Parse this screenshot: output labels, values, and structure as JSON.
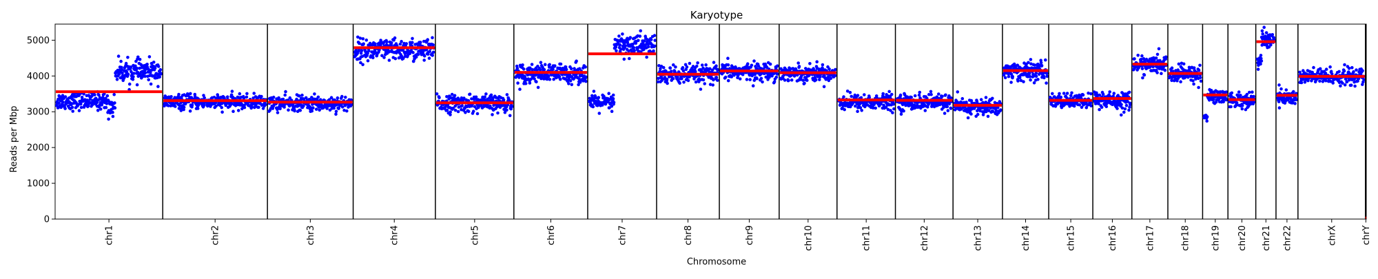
{
  "chart_data": {
    "type": "scatter",
    "title": "Karyotype",
    "xlabel": "Chromosome",
    "ylabel": "Reads per Mbp",
    "ylim": [
      0,
      5450
    ],
    "yticks": [
      0,
      1000,
      2000,
      3000,
      4000,
      5000
    ],
    "grid": false,
    "legend": "none",
    "colors": {
      "points": "#0000ff",
      "median": "#ff0000",
      "separator": "#000000"
    },
    "chromosomes": [
      {
        "name": "chr1",
        "length": 248.96,
        "median": 3560,
        "segments": [
          {
            "frac": 0.48,
            "mean": 3300,
            "spread": 170
          },
          {
            "frac": 0.08,
            "mean": 3150,
            "spread": 220
          },
          {
            "frac": 0.44,
            "mean": 4130,
            "spread": 210
          }
        ]
      },
      {
        "name": "chr2",
        "length": 242.19,
        "median": 3310,
        "segments": [
          {
            "frac": 1.0,
            "mean": 3270,
            "spread": 140
          }
        ]
      },
      {
        "name": "chr3",
        "length": 198.3,
        "median": 3270,
        "segments": [
          {
            "frac": 1.0,
            "mean": 3230,
            "spread": 150
          }
        ]
      },
      {
        "name": "chr4",
        "length": 190.21,
        "median": 4790,
        "segments": [
          {
            "frac": 1.0,
            "mean": 4720,
            "spread": 220
          }
        ]
      },
      {
        "name": "chr5",
        "length": 181.54,
        "median": 3250,
        "segments": [
          {
            "frac": 1.0,
            "mean": 3230,
            "spread": 170
          }
        ]
      },
      {
        "name": "chr6",
        "length": 170.81,
        "median": 4100,
        "segments": [
          {
            "frac": 1.0,
            "mean": 4070,
            "spread": 190
          }
        ]
      },
      {
        "name": "chr7",
        "length": 159.35,
        "median": 4620,
        "segments": [
          {
            "frac": 0.38,
            "mean": 3250,
            "spread": 170
          },
          {
            "frac": 0.62,
            "mean": 4860,
            "spread": 230
          }
        ]
      },
      {
        "name": "chr8",
        "length": 145.14,
        "median": 4050,
        "segments": [
          {
            "frac": 1.0,
            "mean": 4030,
            "spread": 190
          }
        ]
      },
      {
        "name": "chr9",
        "length": 138.39,
        "median": 4140,
        "segments": [
          {
            "frac": 1.0,
            "mean": 4120,
            "spread": 170
          }
        ]
      },
      {
        "name": "chr10",
        "length": 133.8,
        "median": 4090,
        "segments": [
          {
            "frac": 1.0,
            "mean": 4080,
            "spread": 160
          }
        ]
      },
      {
        "name": "chr11",
        "length": 135.09,
        "median": 3330,
        "segments": [
          {
            "frac": 1.0,
            "mean": 3270,
            "spread": 160
          }
        ]
      },
      {
        "name": "chr12",
        "length": 133.28,
        "median": 3320,
        "segments": [
          {
            "frac": 1.0,
            "mean": 3270,
            "spread": 160
          }
        ]
      },
      {
        "name": "chr13",
        "length": 114.36,
        "median": 3180,
        "segments": [
          {
            "frac": 1.0,
            "mean": 3130,
            "spread": 170
          }
        ]
      },
      {
        "name": "chr14",
        "length": 107.04,
        "median": 4150,
        "segments": [
          {
            "frac": 1.0,
            "mean": 4130,
            "spread": 190
          }
        ]
      },
      {
        "name": "chr15",
        "length": 101.99,
        "median": 3320,
        "segments": [
          {
            "frac": 1.0,
            "mean": 3300,
            "spread": 140
          }
        ]
      },
      {
        "name": "chr16",
        "length": 90.34,
        "median": 3370,
        "segments": [
          {
            "frac": 1.0,
            "mean": 3320,
            "spread": 190
          }
        ]
      },
      {
        "name": "chr17",
        "length": 83.26,
        "median": 4330,
        "segments": [
          {
            "frac": 1.0,
            "mean": 4310,
            "spread": 170
          }
        ]
      },
      {
        "name": "chr18",
        "length": 80.37,
        "median": 4070,
        "segments": [
          {
            "frac": 1.0,
            "mean": 4050,
            "spread": 170
          }
        ]
      },
      {
        "name": "chr19",
        "length": 58.62,
        "median": 3470,
        "segments": [
          {
            "frac": 0.15,
            "mean": 2850,
            "spread": 100
          },
          {
            "frac": 0.85,
            "mean": 3430,
            "spread": 140
          }
        ]
      },
      {
        "name": "chr20",
        "length": 64.44,
        "median": 3340,
        "segments": [
          {
            "frac": 1.0,
            "mean": 3330,
            "spread": 150
          }
        ]
      },
      {
        "name": "chr21",
        "length": 46.71,
        "median": 4960,
        "segments": [
          {
            "frac": 0.25,
            "mean": 4400,
            "spread": 150
          },
          {
            "frac": 0.75,
            "mean": 5030,
            "spread": 190
          }
        ]
      },
      {
        "name": "chr22",
        "length": 50.82,
        "median": 3460,
        "segments": [
          {
            "frac": 1.0,
            "mean": 3400,
            "spread": 150
          }
        ]
      },
      {
        "name": "chrX",
        "length": 156.04,
        "median": 3990,
        "segments": [
          {
            "frac": 1.0,
            "mean": 3980,
            "spread": 160
          }
        ]
      },
      {
        "name": "chrY",
        "length": 2.0,
        "median": 0,
        "segments": []
      }
    ]
  }
}
